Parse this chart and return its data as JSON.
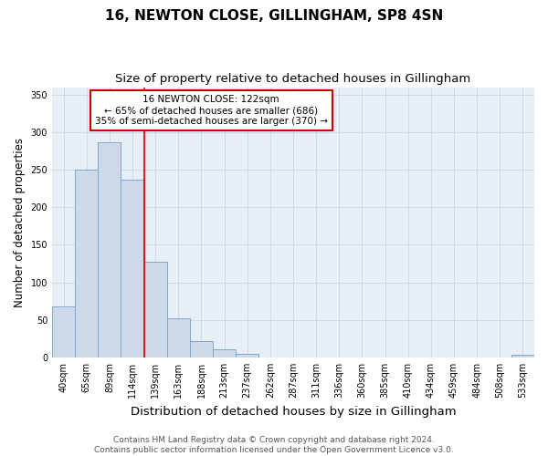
{
  "title": "16, NEWTON CLOSE, GILLINGHAM, SP8 4SN",
  "subtitle": "Size of property relative to detached houses in Gillingham",
  "xlabel": "Distribution of detached houses by size in Gillingham",
  "ylabel": "Number of detached properties",
  "categories": [
    "40sqm",
    "65sqm",
    "89sqm",
    "114sqm",
    "139sqm",
    "163sqm",
    "188sqm",
    "213sqm",
    "237sqm",
    "262sqm",
    "287sqm",
    "311sqm",
    "336sqm",
    "360sqm",
    "385sqm",
    "410sqm",
    "434sqm",
    "459sqm",
    "484sqm",
    "508sqm",
    "533sqm"
  ],
  "values": [
    68,
    250,
    287,
    237,
    128,
    52,
    22,
    11,
    5,
    0,
    0,
    0,
    0,
    0,
    0,
    0,
    0,
    0,
    0,
    0,
    3
  ],
  "bar_color": "#ccd9e8",
  "bar_edge_color": "#7aa8cc",
  "red_line_x": 3.5,
  "annotation_lines": [
    "16 NEWTON CLOSE: 122sqm",
    "← 65% of detached houses are smaller (686)",
    "35% of semi-detached houses are larger (370) →"
  ],
  "annotation_box_color": "#ffffff",
  "annotation_box_edge": "#cc0000",
  "red_line_color": "#cc0000",
  "ylim": [
    0,
    360
  ],
  "yticks": [
    0,
    50,
    100,
    150,
    200,
    250,
    300,
    350
  ],
  "footer_line1": "Contains HM Land Registry data © Crown copyright and database right 2024.",
  "footer_line2": "Contains public sector information licensed under the Open Government Licence v3.0.",
  "plot_bg_color": "#e8eef5",
  "fig_bg_color": "#ffffff",
  "grid_color": "#c8d4e0",
  "title_fontsize": 11,
  "subtitle_fontsize": 9.5,
  "xlabel_fontsize": 9.5,
  "ylabel_fontsize": 8.5,
  "tick_fontsize": 7,
  "annotation_fontsize": 7.5,
  "footer_fontsize": 6.5
}
